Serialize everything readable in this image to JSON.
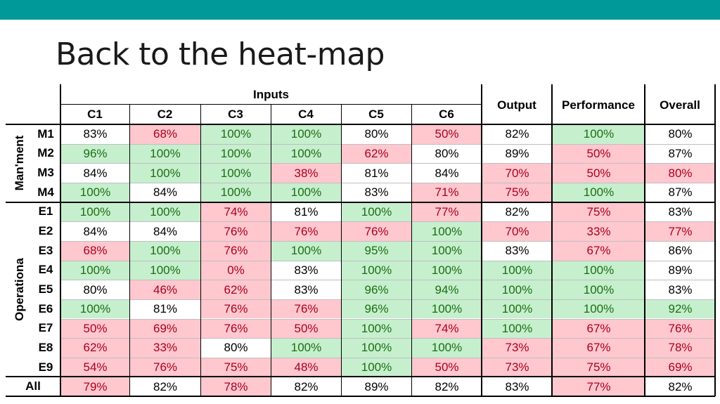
{
  "slide": {
    "title": "Back to the heat-map"
  },
  "table": {
    "inputs_label": "Inputs",
    "columns": [
      "C1",
      "C2",
      "C3",
      "C4",
      "C5",
      "C6",
      "Output",
      "Performance",
      "Overall"
    ],
    "groups": [
      {
        "label": "Man'ment",
        "rows": [
          0,
          3
        ]
      },
      {
        "label": "Operationa",
        "rows": [
          4,
          12
        ]
      }
    ],
    "colors": {
      "good": "#c6efce",
      "bad": "#ffc7ce",
      "neutral": "#ffffff"
    },
    "rows": [
      {
        "label": "M1",
        "cells": [
          [
            "83%",
            "w"
          ],
          [
            "68%",
            "r"
          ],
          [
            "100%",
            "g"
          ],
          [
            "100%",
            "g"
          ],
          [
            "80%",
            "w"
          ],
          [
            "50%",
            "r"
          ],
          [
            "82%",
            "w"
          ],
          [
            "100%",
            "g"
          ],
          [
            "80%",
            "w"
          ]
        ]
      },
      {
        "label": "M2",
        "cells": [
          [
            "96%",
            "g"
          ],
          [
            "100%",
            "g"
          ],
          [
            "100%",
            "g"
          ],
          [
            "100%",
            "g"
          ],
          [
            "62%",
            "r"
          ],
          [
            "80%",
            "w"
          ],
          [
            "89%",
            "w"
          ],
          [
            "50%",
            "r"
          ],
          [
            "87%",
            "w"
          ]
        ]
      },
      {
        "label": "M3",
        "cells": [
          [
            "84%",
            "w"
          ],
          [
            "100%",
            "g"
          ],
          [
            "100%",
            "g"
          ],
          [
            "38%",
            "r"
          ],
          [
            "81%",
            "w"
          ],
          [
            "84%",
            "w"
          ],
          [
            "70%",
            "r"
          ],
          [
            "50%",
            "r"
          ],
          [
            "80%",
            "r"
          ]
        ]
      },
      {
        "label": "M4",
        "cells": [
          [
            "100%",
            "g"
          ],
          [
            "84%",
            "w"
          ],
          [
            "100%",
            "g"
          ],
          [
            "100%",
            "g"
          ],
          [
            "83%",
            "w"
          ],
          [
            "71%",
            "r"
          ],
          [
            "75%",
            "r"
          ],
          [
            "100%",
            "g"
          ],
          [
            "87%",
            "w"
          ]
        ]
      },
      {
        "label": "E1",
        "cells": [
          [
            "100%",
            "g"
          ],
          [
            "100%",
            "g"
          ],
          [
            "74%",
            "r"
          ],
          [
            "81%",
            "w"
          ],
          [
            "100%",
            "g"
          ],
          [
            "77%",
            "r"
          ],
          [
            "82%",
            "w"
          ],
          [
            "75%",
            "r"
          ],
          [
            "83%",
            "w"
          ]
        ]
      },
      {
        "label": "E2",
        "cells": [
          [
            "84%",
            "w"
          ],
          [
            "84%",
            "w"
          ],
          [
            "76%",
            "r"
          ],
          [
            "76%",
            "r"
          ],
          [
            "76%",
            "r"
          ],
          [
            "100%",
            "g"
          ],
          [
            "70%",
            "r"
          ],
          [
            "33%",
            "r"
          ],
          [
            "77%",
            "r"
          ]
        ]
      },
      {
        "label": "E3",
        "cells": [
          [
            "68%",
            "r"
          ],
          [
            "100%",
            "g"
          ],
          [
            "76%",
            "r"
          ],
          [
            "100%",
            "g"
          ],
          [
            "95%",
            "g"
          ],
          [
            "100%",
            "g"
          ],
          [
            "83%",
            "w"
          ],
          [
            "67%",
            "r"
          ],
          [
            "86%",
            "w"
          ]
        ]
      },
      {
        "label": "E4",
        "cells": [
          [
            "100%",
            "g"
          ],
          [
            "100%",
            "g"
          ],
          [
            "0%",
            "r"
          ],
          [
            "83%",
            "w"
          ],
          [
            "100%",
            "g"
          ],
          [
            "100%",
            "g"
          ],
          [
            "100%",
            "g"
          ],
          [
            "100%",
            "g"
          ],
          [
            "89%",
            "w"
          ]
        ]
      },
      {
        "label": "E5",
        "cells": [
          [
            "80%",
            "w"
          ],
          [
            "46%",
            "r"
          ],
          [
            "62%",
            "r"
          ],
          [
            "83%",
            "w"
          ],
          [
            "96%",
            "g"
          ],
          [
            "94%",
            "g"
          ],
          [
            "100%",
            "g"
          ],
          [
            "100%",
            "g"
          ],
          [
            "83%",
            "w"
          ]
        ]
      },
      {
        "label": "E6",
        "cells": [
          [
            "100%",
            "g"
          ],
          [
            "81%",
            "w"
          ],
          [
            "76%",
            "r"
          ],
          [
            "76%",
            "r"
          ],
          [
            "96%",
            "g"
          ],
          [
            "100%",
            "g"
          ],
          [
            "100%",
            "g"
          ],
          [
            "100%",
            "g"
          ],
          [
            "92%",
            "g"
          ]
        ]
      },
      {
        "label": "E7",
        "cells": [
          [
            "50%",
            "r"
          ],
          [
            "69%",
            "r"
          ],
          [
            "76%",
            "r"
          ],
          [
            "50%",
            "r"
          ],
          [
            "100%",
            "g"
          ],
          [
            "74%",
            "r"
          ],
          [
            "100%",
            "g"
          ],
          [
            "67%",
            "r"
          ],
          [
            "76%",
            "r"
          ]
        ]
      },
      {
        "label": "E8",
        "cells": [
          [
            "62%",
            "r"
          ],
          [
            "33%",
            "r"
          ],
          [
            "80%",
            "w"
          ],
          [
            "100%",
            "g"
          ],
          [
            "100%",
            "g"
          ],
          [
            "100%",
            "g"
          ],
          [
            "73%",
            "r"
          ],
          [
            "67%",
            "r"
          ],
          [
            "78%",
            "r"
          ]
        ]
      },
      {
        "label": "E9",
        "cells": [
          [
            "54%",
            "r"
          ],
          [
            "76%",
            "r"
          ],
          [
            "75%",
            "r"
          ],
          [
            "48%",
            "r"
          ],
          [
            "100%",
            "g"
          ],
          [
            "50%",
            "r"
          ],
          [
            "73%",
            "r"
          ],
          [
            "75%",
            "r"
          ],
          [
            "69%",
            "r"
          ]
        ]
      },
      {
        "label": "All",
        "cells": [
          [
            "79%",
            "r"
          ],
          [
            "82%",
            "w"
          ],
          [
            "78%",
            "r"
          ],
          [
            "82%",
            "w"
          ],
          [
            "89%",
            "w"
          ],
          [
            "82%",
            "w"
          ],
          [
            "83%",
            "w"
          ],
          [
            "77%",
            "r"
          ],
          [
            "82%",
            "w"
          ]
        ]
      }
    ]
  }
}
